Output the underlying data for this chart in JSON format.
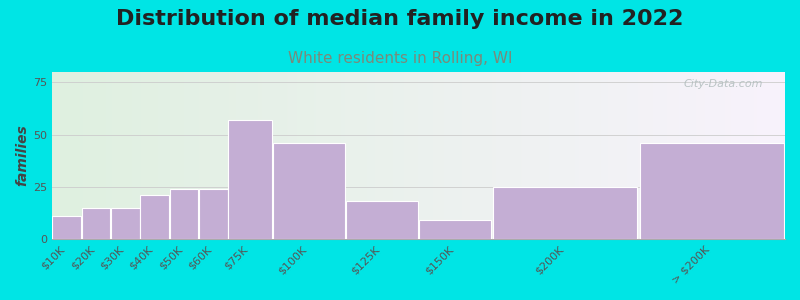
{
  "title": "Distribution of median family income in 2022",
  "subtitle": "White residents in Rolling, WI",
  "ylabel": "families",
  "categories": [
    "$10K",
    "$20K",
    "$30K",
    "$40K",
    "$50K",
    "$60K",
    "$75K",
    "$100K",
    "$125K",
    "$150K",
    "$200K",
    "> $200K"
  ],
  "values": [
    11,
    15,
    15,
    21,
    24,
    24,
    57,
    46,
    18,
    9,
    25,
    46
  ],
  "bin_edges": [
    0,
    10,
    20,
    30,
    40,
    50,
    60,
    75,
    100,
    125,
    150,
    200,
    250
  ],
  "bar_color": "#c4aed4",
  "bar_edgecolor": "#ffffff",
  "background_outer": "#00e5e5",
  "plot_bg_left": "#dff0e0",
  "plot_bg_right": "#f8f3fc",
  "title_fontsize": 16,
  "subtitle_fontsize": 11,
  "subtitle_color": "#7a8a7a",
  "ylabel_fontsize": 10,
  "tick_fontsize": 8,
  "yticks": [
    0,
    25,
    50,
    75
  ],
  "ylim": [
    0,
    80
  ],
  "watermark_text": "City-Data.com",
  "watermark_color": "#b0bcbc"
}
